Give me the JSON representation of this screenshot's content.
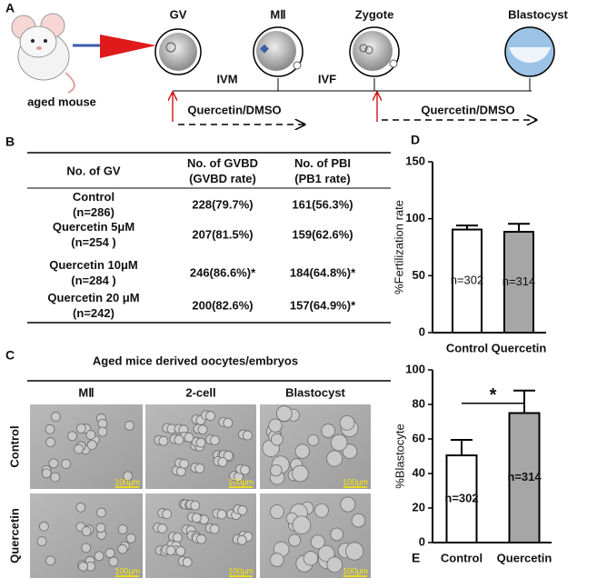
{
  "panel_labels": [
    "A",
    "B",
    "C",
    "D",
    "E"
  ],
  "schematic": {
    "stages": [
      "GV",
      "MⅡ",
      "Zygote",
      "Blastocyst"
    ],
    "source": "aged mouse",
    "steps": [
      "IVM",
      "IVF"
    ],
    "treatments": [
      "Quercetin/DMSO",
      "Quercetin/DMSO"
    ]
  },
  "table": {
    "header": [
      [
        "No. of GV"
      ],
      [
        "No. of GVBD",
        "(GVBD rate)"
      ],
      [
        "No. of PBI",
        "(PB1 rate)"
      ]
    ],
    "rows": [
      [
        [
          "Control",
          "(n=286)"
        ],
        [
          "228(79.7%)"
        ],
        [
          "161(56.3%)"
        ]
      ],
      [
        [
          "Quercetin 5μM",
          "(n=254 )"
        ],
        [
          "207(81.5%)"
        ],
        [
          "159(62.6%)"
        ]
      ],
      [
        [
          "Quercetin 10μM",
          "(n=284 )"
        ],
        [
          "246(86.6%)*"
        ],
        [
          "184(64.8%)*"
        ]
      ],
      [
        [
          "Quercetin 20 μM",
          "(n=242)"
        ],
        [
          "200(82.6%)"
        ],
        [
          "157(64.9%)*"
        ]
      ]
    ]
  },
  "images": {
    "title": "Aged mice derived oocytes/embryos",
    "columns": [
      "MⅡ",
      "2-cell",
      "Blastocyst"
    ],
    "rows": [
      "Control",
      "Quercetin"
    ],
    "scale_bar": "100μm"
  },
  "chart_data": [
    {
      "type": "bar",
      "ylabel": "%Fertilization rate",
      "categories": [
        "Control",
        "Quercetin"
      ],
      "values": [
        90.5,
        88.5
      ],
      "errors": [
        3.5,
        7
      ],
      "colors": [
        "#ffffff",
        "#a6a6a6"
      ],
      "bar_labels": [
        "n=302",
        "n=314"
      ],
      "ylim": [
        0,
        150
      ],
      "yticks": [
        0,
        50,
        100,
        150
      ]
    },
    {
      "type": "bar",
      "ylabel": "%Blastocyte",
      "categories": [
        "Control",
        "Quercetin"
      ],
      "values": [
        50.5,
        75
      ],
      "errors": [
        9,
        13
      ],
      "colors": [
        "#ffffff",
        "#a6a6a6"
      ],
      "bar_labels": [
        "n=302",
        "n=314"
      ],
      "ylim": [
        0,
        100
      ],
      "yticks": [
        0,
        20,
        40,
        60,
        80,
        100
      ],
      "significance": "*"
    }
  ]
}
